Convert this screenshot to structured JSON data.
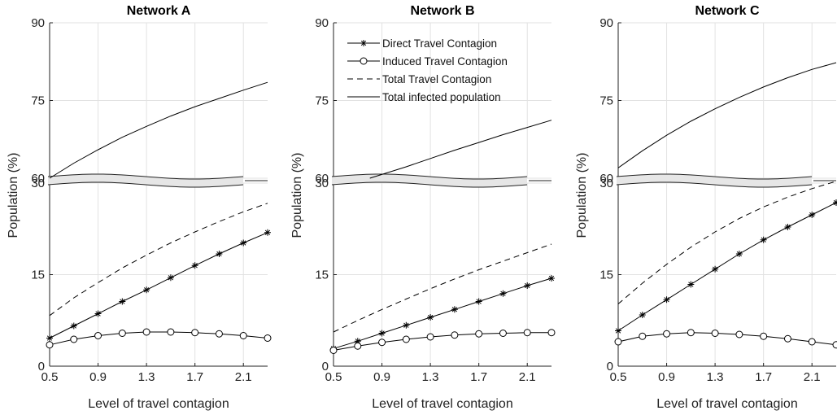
{
  "chart_data": [
    {
      "type": "line",
      "title": "Network A",
      "xlabel": "Level of travel contagion",
      "ylabel": "Population (%)",
      "xlim": [
        0.5,
        2.3
      ],
      "xticks": [
        "0.5",
        "0.9",
        "1.3",
        "1.7",
        "2.1"
      ],
      "axis_break": {
        "lower_ylim": [
          0,
          30
        ],
        "upper_ylim": [
          60,
          90
        ]
      },
      "yticks_lower": [
        "0",
        "15",
        "30"
      ],
      "yticks_upper": [
        "60",
        "75",
        "90"
      ],
      "grid": true,
      "legend": false,
      "series": [
        {
          "name": "Direct Travel Contagion",
          "style": "solid-asterisk",
          "x": [
            0.5,
            0.7,
            0.9,
            1.1,
            1.3,
            1.5,
            1.7,
            1.9,
            2.1,
            2.3
          ],
          "y": [
            4.6,
            6.6,
            8.6,
            10.6,
            12.5,
            14.5,
            16.5,
            18.4,
            20.2,
            21.9
          ]
        },
        {
          "name": "Induced Travel Contagion",
          "style": "solid-circle",
          "x": [
            0.5,
            0.7,
            0.9,
            1.1,
            1.3,
            1.5,
            1.7,
            1.9,
            2.1,
            2.3
          ],
          "y": [
            3.5,
            4.4,
            5.0,
            5.4,
            5.6,
            5.6,
            5.5,
            5.3,
            5.0,
            4.6
          ]
        },
        {
          "name": "Total Travel Contagion",
          "style": "dashed",
          "x": [
            0.5,
            0.7,
            0.9,
            1.1,
            1.3,
            1.5,
            1.7,
            1.9,
            2.1,
            2.3
          ],
          "y": [
            8.3,
            11.2,
            13.7,
            16.1,
            18.2,
            20.2,
            22.0,
            23.7,
            25.3,
            26.7
          ]
        },
        {
          "name": "Total infected population",
          "style": "solid",
          "x": [
            0.5,
            0.7,
            0.9,
            1.1,
            1.3,
            1.5,
            1.7,
            1.9,
            2.1,
            2.3
          ],
          "y": [
            60.0,
            62.9,
            65.5,
            67.9,
            70.0,
            72.0,
            73.8,
            75.4,
            77.0,
            78.5
          ]
        }
      ]
    },
    {
      "type": "line",
      "title": "Network B",
      "xlabel": "Level of travel contagion",
      "ylabel": "Population (%)",
      "xlim": [
        0.5,
        2.3
      ],
      "xticks": [
        "0.5",
        "0.9",
        "1.3",
        "1.7",
        "2.1"
      ],
      "axis_break": {
        "lower_ylim": [
          0,
          30
        ],
        "upper_ylim": [
          60,
          90
        ]
      },
      "yticks_lower": [
        "0",
        "15",
        "30"
      ],
      "yticks_upper": [
        "60",
        "75",
        "90"
      ],
      "grid": true,
      "legend": true,
      "legend_position": "top-right",
      "series": [
        {
          "name": "Direct Travel Contagion",
          "style": "solid-asterisk",
          "x": [
            0.5,
            0.7,
            0.9,
            1.1,
            1.3,
            1.5,
            1.7,
            1.9,
            2.1,
            2.3
          ],
          "y": [
            2.9,
            4.1,
            5.4,
            6.7,
            8.0,
            9.3,
            10.6,
            11.9,
            13.2,
            14.4
          ]
        },
        {
          "name": "Induced Travel Contagion",
          "style": "solid-circle",
          "x": [
            0.5,
            0.7,
            0.9,
            1.1,
            1.3,
            1.5,
            1.7,
            1.9,
            2.1,
            2.3
          ],
          "y": [
            2.6,
            3.3,
            3.9,
            4.4,
            4.8,
            5.1,
            5.3,
            5.4,
            5.5,
            5.5
          ]
        },
        {
          "name": "Total Travel Contagion",
          "style": "dashed",
          "x": [
            0.5,
            0.7,
            0.9,
            1.1,
            1.3,
            1.5,
            1.7,
            1.9,
            2.1,
            2.3
          ],
          "y": [
            5.6,
            7.5,
            9.3,
            11.0,
            12.7,
            14.3,
            15.8,
            17.2,
            18.6,
            20.0
          ]
        },
        {
          "name": "Total infected population",
          "style": "solid",
          "x": [
            0.8,
            1.1,
            1.3,
            1.5,
            1.7,
            1.9,
            2.1,
            2.3
          ],
          "y": [
            60.0,
            62.2,
            63.8,
            65.4,
            66.9,
            68.4,
            69.8,
            71.2
          ]
        }
      ]
    },
    {
      "type": "line",
      "title": "Network C",
      "xlabel": "Level of travel contagion",
      "ylabel": "Population (%)",
      "xlim": [
        0.5,
        2.3
      ],
      "xticks": [
        "0.5",
        "0.9",
        "1.3",
        "1.7",
        "2.1"
      ],
      "axis_break": {
        "lower_ylim": [
          0,
          30
        ],
        "upper_ylim": [
          60,
          90
        ]
      },
      "yticks_lower": [
        "0",
        "15",
        "30"
      ],
      "yticks_upper": [
        "60",
        "75",
        "90"
      ],
      "grid": true,
      "legend": false,
      "series": [
        {
          "name": "Direct Travel Contagion",
          "style": "solid-asterisk",
          "x": [
            0.5,
            0.7,
            0.9,
            1.1,
            1.3,
            1.5,
            1.7,
            1.9,
            2.1,
            2.3
          ],
          "y": [
            5.8,
            8.4,
            10.9,
            13.4,
            15.9,
            18.4,
            20.7,
            22.8,
            24.8,
            26.8
          ]
        },
        {
          "name": "Induced Travel Contagion",
          "style": "solid-circle",
          "x": [
            0.5,
            0.7,
            0.9,
            1.1,
            1.3,
            1.5,
            1.7,
            1.9,
            2.1,
            2.3
          ],
          "y": [
            4.0,
            4.9,
            5.3,
            5.5,
            5.4,
            5.2,
            4.9,
            4.5,
            4.0,
            3.5
          ]
        },
        {
          "name": "Total Travel Contagion",
          "style": "dashed",
          "x": [
            0.5,
            0.7,
            0.9,
            1.1,
            1.3,
            1.5,
            1.7,
            1.9,
            2.1,
            2.3
          ],
          "y": [
            10.2,
            13.6,
            16.7,
            19.5,
            22.0,
            24.2,
            26.1,
            27.7,
            29.1,
            30.3
          ]
        },
        {
          "name": "Total infected population",
          "style": "solid",
          "x": [
            0.5,
            0.7,
            0.9,
            1.1,
            1.3,
            1.5,
            1.7,
            1.9,
            2.1,
            2.3
          ],
          "y": [
            62.0,
            65.3,
            68.3,
            71.0,
            73.4,
            75.6,
            77.6,
            79.4,
            81.0,
            82.3
          ]
        }
      ]
    }
  ]
}
